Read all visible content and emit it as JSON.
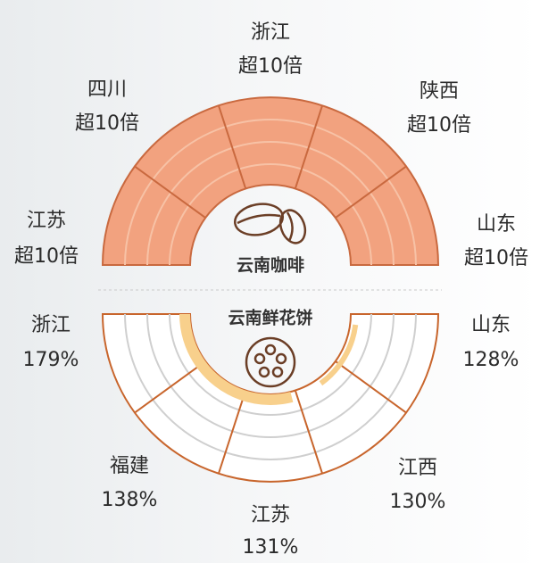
{
  "charts": [
    {
      "title": "云南咖啡",
      "regions": [
        {
          "name": "江苏",
          "label": "超10倍"
        },
        {
          "name": "四川",
          "label": "超10倍"
        },
        {
          "name": "浙江",
          "label": "超10倍"
        },
        {
          "name": "陕西",
          "label": "超10倍"
        },
        {
          "name": "山东",
          "label": "超10倍"
        }
      ]
    },
    {
      "title": "云南鲜花饼",
      "regions": [
        {
          "name": "浙江",
          "label": "179%"
        },
        {
          "name": "福建",
          "label": "138%"
        },
        {
          "name": "江苏",
          "label": "131%"
        },
        {
          "name": "江西",
          "label": "130%"
        },
        {
          "name": "山东",
          "label": "128%"
        }
      ]
    }
  ]
}
